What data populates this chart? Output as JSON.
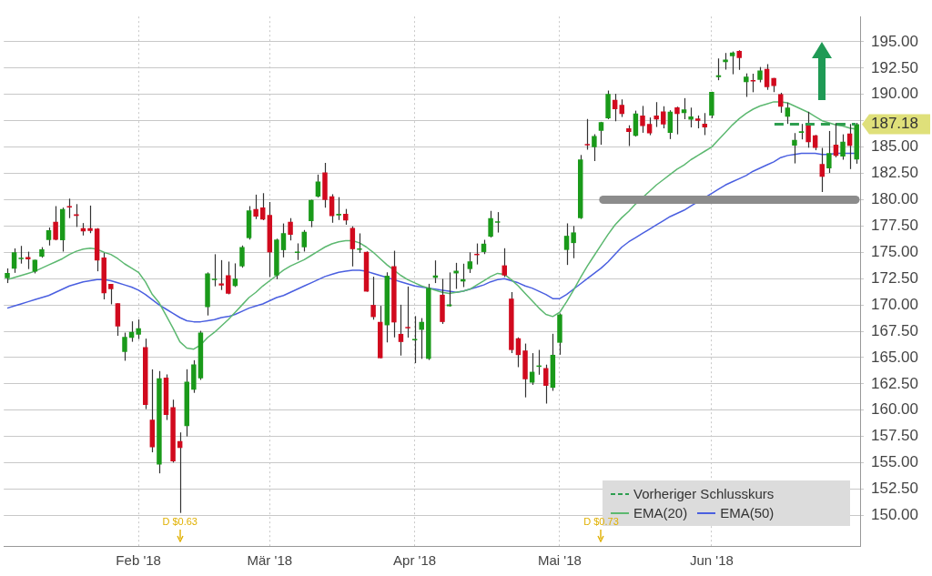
{
  "chart_data": {
    "type": "candlestick",
    "categories": [
      null,
      null,
      null,
      null,
      null,
      null,
      null,
      null,
      null,
      null,
      null,
      null,
      null,
      null,
      null,
      null,
      null,
      null,
      null,
      "Feb '18",
      null,
      null,
      null,
      null,
      null,
      null,
      null,
      null,
      null,
      null,
      null,
      null,
      null,
      null,
      null,
      null,
      null,
      null,
      "Mär '18",
      null,
      null,
      null,
      null,
      null,
      null,
      null,
      null,
      null,
      null,
      null,
      null,
      null,
      null,
      null,
      null,
      null,
      null,
      null,
      null,
      "Apr '18",
      null,
      null,
      null,
      null,
      null,
      null,
      null,
      null,
      null,
      null,
      null,
      null,
      null,
      null,
      null,
      null,
      null,
      null,
      null,
      null,
      "Mai '18",
      null,
      null,
      null,
      null,
      null,
      null,
      null,
      null,
      null,
      null,
      null,
      null,
      null,
      null,
      null,
      null,
      null,
      null,
      null,
      null,
      null,
      "Jun '18",
      null,
      null,
      null,
      null,
      null,
      null,
      null,
      null,
      null,
      null,
      null,
      null,
      null,
      null,
      null,
      null,
      null,
      null,
      null,
      null,
      null
    ],
    "ohlc": [
      [
        172.54,
        173.47,
        172.08,
        173.03
      ],
      [
        173.44,
        175.37,
        173.05,
        175.0
      ],
      [
        174.35,
        175.61,
        173.93,
        174.35
      ],
      [
        174.55,
        175.06,
        173.41,
        174.33
      ],
      [
        173.16,
        174.3,
        173.0,
        174.29
      ],
      [
        174.59,
        175.49,
        174.49,
        175.28
      ],
      [
        176.18,
        177.36,
        175.65,
        177.09
      ],
      [
        177.9,
        179.39,
        176.14,
        176.19
      ],
      [
        176.15,
        179.25,
        175.07,
        179.1
      ],
      [
        179.37,
        180.1,
        178.25,
        179.26
      ],
      [
        178.61,
        179.58,
        177.41,
        178.46
      ],
      [
        177.3,
        177.78,
        176.6,
        177.0
      ],
      [
        177.3,
        179.44,
        176.82,
        177.04
      ],
      [
        177.25,
        177.3,
        173.2,
        174.22
      ],
      [
        174.51,
        174.95,
        170.53,
        171.11
      ],
      [
        172.0,
        172.0,
        170.06,
        171.51
      ],
      [
        170.16,
        170.16,
        167.07,
        167.96
      ],
      [
        165.53,
        167.37,
        164.7,
        166.97
      ],
      [
        166.87,
        168.44,
        166.5,
        167.43
      ],
      [
        167.17,
        168.62,
        166.76,
        167.78
      ],
      [
        166.0,
        166.8,
        160.1,
        160.5
      ],
      [
        159.1,
        163.88,
        156.0,
        156.49
      ],
      [
        154.83,
        163.72,
        154.0,
        163.03
      ],
      [
        163.09,
        163.4,
        159.07,
        159.54
      ],
      [
        160.29,
        161.0,
        155.03,
        155.15
      ],
      [
        157.07,
        157.89,
        150.24,
        156.41
      ],
      [
        158.5,
        163.89,
        157.51,
        162.71
      ],
      [
        161.95,
        164.75,
        161.65,
        164.34
      ],
      [
        163.04,
        167.54,
        162.88,
        167.37
      ],
      [
        169.79,
        173.09,
        169.0,
        172.99
      ],
      [
        172.36,
        174.82,
        171.77,
        172.43
      ],
      [
        172.05,
        174.26,
        171.42,
        171.85
      ],
      [
        172.83,
        174.12,
        171.01,
        171.07
      ],
      [
        171.8,
        173.95,
        171.71,
        172.5
      ],
      [
        173.67,
        175.65,
        173.54,
        175.5
      ],
      [
        176.35,
        179.39,
        176.21,
        178.97
      ],
      [
        179.1,
        180.48,
        178.16,
        178.39
      ],
      [
        179.26,
        180.62,
        178.05,
        178.12
      ],
      [
        178.54,
        179.78,
        172.66,
        175.0
      ],
      [
        172.8,
        176.3,
        172.45,
        176.21
      ],
      [
        175.21,
        177.74,
        174.52,
        176.82
      ],
      [
        177.91,
        178.25,
        176.13,
        176.67
      ],
      [
        174.94,
        175.85,
        174.27,
        175.03
      ],
      [
        175.48,
        177.12,
        175.07,
        176.94
      ],
      [
        177.96,
        180.0,
        177.39,
        179.98
      ],
      [
        180.29,
        182.39,
        180.21,
        181.72
      ],
      [
        182.59,
        183.5,
        179.24,
        179.97
      ],
      [
        180.32,
        180.52,
        177.81,
        178.44
      ],
      [
        178.5,
        180.24,
        178.07,
        178.65
      ],
      [
        178.65,
        179.12,
        177.62,
        178.02
      ],
      [
        177.32,
        177.47,
        173.66,
        175.3
      ],
      [
        175.24,
        176.8,
        174.94,
        175.24
      ],
      [
        175.04,
        175.09,
        171.26,
        171.27
      ],
      [
        170.0,
        172.68,
        168.6,
        168.85
      ],
      [
        168.39,
        169.92,
        164.94,
        164.94
      ],
      [
        168.07,
        173.1,
        166.44,
        172.77
      ],
      [
        173.68,
        175.15,
        166.92,
        168.34
      ],
      [
        167.25,
        170.02,
        165.19,
        166.48
      ],
      [
        167.81,
        171.75,
        166.9,
        167.78
      ],
      [
        166.64,
        168.94,
        164.47,
        166.68
      ],
      [
        167.64,
        168.75,
        164.88,
        168.39
      ],
      [
        164.88,
        172.01,
        164.77,
        171.61
      ],
      [
        172.58,
        174.23,
        172.08,
        172.8
      ],
      [
        170.97,
        172.48,
        168.2,
        168.38
      ],
      [
        169.88,
        173.09,
        169.85,
        170.05
      ],
      [
        173.0,
        174.0,
        171.53,
        173.25
      ],
      [
        172.23,
        173.92,
        171.7,
        172.44
      ],
      [
        173.41,
        175.0,
        173.04,
        174.14
      ],
      [
        174.78,
        175.84,
        173.85,
        174.73
      ],
      [
        175.03,
        176.19,
        174.83,
        175.82
      ],
      [
        176.49,
        178.94,
        176.41,
        178.24
      ],
      [
        177.81,
        178.82,
        176.88,
        177.84
      ],
      [
        173.76,
        175.39,
        172.66,
        172.8
      ],
      [
        170.6,
        171.22,
        165.43,
        165.72
      ],
      [
        166.83,
        166.92,
        164.09,
        165.24
      ],
      [
        165.67,
        166.33,
        161.22,
        162.94
      ],
      [
        162.62,
        165.42,
        162.41,
        163.65
      ],
      [
        164.12,
        165.73,
        163.37,
        164.22
      ],
      [
        164.0,
        164.33,
        160.63,
        162.32
      ],
      [
        162.13,
        167.26,
        161.84,
        165.26
      ],
      [
        166.41,
        169.2,
        165.27,
        169.1
      ],
      [
        175.23,
        177.75,
        173.8,
        176.57
      ],
      [
        175.88,
        177.5,
        174.44,
        176.89
      ],
      [
        178.25,
        184.25,
        178.17,
        183.83
      ],
      [
        185.18,
        187.67,
        184.75,
        185.16
      ],
      [
        184.99,
        186.22,
        183.67,
        186.05
      ],
      [
        186.55,
        187.4,
        185.22,
        187.36
      ],
      [
        187.74,
        190.37,
        187.65,
        190.04
      ],
      [
        189.49,
        190.06,
        187.45,
        188.59
      ],
      [
        189.01,
        189.53,
        187.86,
        188.15
      ],
      [
        186.78,
        187.07,
        185.1,
        186.44
      ],
      [
        186.07,
        188.46,
        186.0,
        188.18
      ],
      [
        188.0,
        188.91,
        186.36,
        186.99
      ],
      [
        187.19,
        187.81,
        186.13,
        186.31
      ],
      [
        188.0,
        189.27,
        186.91,
        187.63
      ],
      [
        188.38,
        188.88,
        186.78,
        187.16
      ],
      [
        186.35,
        188.5,
        185.76,
        188.36
      ],
      [
        188.77,
        188.84,
        186.21,
        188.15
      ],
      [
        188.23,
        189.65,
        187.65,
        188.58
      ],
      [
        187.6,
        188.75,
        186.87,
        187.9
      ],
      [
        187.72,
        188.0,
        186.78,
        187.5
      ],
      [
        187.22,
        188.23,
        186.14,
        186.87
      ],
      [
        187.99,
        190.26,
        187.75,
        190.24
      ],
      [
        191.64,
        193.42,
        191.35,
        191.83
      ],
      [
        193.07,
        193.94,
        192.36,
        193.31
      ],
      [
        193.63,
        194.08,
        191.92,
        193.98
      ],
      [
        194.14,
        194.2,
        192.34,
        193.46
      ],
      [
        191.17,
        192.0,
        189.77,
        191.7
      ],
      [
        191.35,
        191.97,
        190.21,
        191.23
      ],
      [
        191.39,
        192.61,
        191.15,
        192.28
      ],
      [
        192.42,
        192.88,
        190.44,
        190.7
      ],
      [
        191.55,
        191.57,
        190.22,
        190.8
      ],
      [
        190.03,
        190.16,
        188.26,
        188.84
      ],
      [
        187.88,
        189.22,
        187.2,
        188.74
      ],
      [
        185.14,
        186.33,
        183.45,
        185.69
      ],
      [
        186.35,
        187.2,
        185.73,
        186.5
      ],
      [
        187.25,
        188.35,
        184.94,
        185.46
      ],
      [
        186.12,
        186.15,
        184.7,
        184.92
      ],
      [
        183.4,
        184.92,
        180.73,
        182.17
      ],
      [
        182.99,
        186.53,
        182.54,
        184.43
      ],
      [
        185.23,
        187.28,
        184.03,
        184.16
      ],
      [
        184.1,
        186.21,
        183.8,
        185.5
      ],
      [
        186.29,
        187.19,
        182.91,
        185.11
      ],
      [
        183.82,
        187.3,
        183.42,
        187.18
      ]
    ],
    "colors": [
      "#1a9a1a",
      "#1a9a1a",
      "#1a9a1a",
      "#d10a1e",
      "#1a9a1a",
      "#1a9a1a",
      "#1a9a1a",
      "#d10a1e",
      "#1a9a1a",
      "#d10a1e",
      "#d10a1e",
      "#d10a1e",
      "#d10a1e",
      "#d10a1e",
      "#d10a1e",
      "#d10a1e",
      "#d10a1e",
      "#1a9a1a",
      "#1a9a1a",
      "#1a9a1a",
      "#d10a1e",
      "#d10a1e",
      "#1a9a1a",
      "#d10a1e",
      "#d10a1e",
      "#d10a1e",
      "#1a9a1a",
      "#1a9a1a",
      "#1a9a1a",
      "#1a9a1a",
      "#1a9a1a",
      "#d10a1e",
      "#d10a1e",
      "#1a9a1a",
      "#1a9a1a",
      "#1a9a1a",
      "#d10a1e",
      "#d10a1e",
      "#d10a1e",
      "#1a9a1a",
      "#1a9a1a",
      "#d10a1e",
      "#1a9a1a",
      "#1a9a1a",
      "#1a9a1a",
      "#1a9a1a",
      "#d10a1e",
      "#d10a1e",
      "#1a9a1a",
      "#d10a1e",
      "#d10a1e",
      "#1a9a1a",
      "#d10a1e",
      "#d10a1e",
      "#d10a1e",
      "#1a9a1a",
      "#d10a1e",
      "#d10a1e",
      "#d10a1e",
      "#1a9a1a",
      "#1a9a1a",
      "#1a9a1a",
      "#1a9a1a",
      "#d10a1e",
      "#1a9a1a",
      "#1a9a1a",
      "#1a9a1a",
      "#1a9a1a",
      "#d10a1e",
      "#1a9a1a",
      "#1a9a1a",
      "#1a9a1a",
      "#d10a1e",
      "#d10a1e",
      "#d10a1e",
      "#d10a1e",
      "#1a9a1a",
      "#1a9a1a",
      "#d10a1e",
      "#1a9a1a",
      "#1a9a1a",
      "#1a9a1a",
      "#1a9a1a",
      "#1a9a1a",
      "#d10a1e",
      "#1a9a1a",
      "#1a9a1a",
      "#1a9a1a",
      "#d10a1e",
      "#d10a1e",
      "#d10a1e",
      "#1a9a1a",
      "#d10a1e",
      "#d10a1e",
      "#d10a1e",
      "#d10a1e",
      "#1a9a1a",
      "#d10a1e",
      "#1a9a1a",
      "#1a9a1a",
      "#d10a1e",
      "#d10a1e",
      "#1a9a1a",
      "#1a9a1a",
      "#1a9a1a",
      "#1a9a1a",
      "#d10a1e",
      "#1a9a1a",
      "#d10a1e",
      "#1a9a1a",
      "#d10a1e",
      "#d10a1e",
      "#d10a1e",
      "#1a9a1a",
      "#1a9a1a",
      "#1a9a1a",
      "#d10a1e",
      "#d10a1e",
      "#d10a1e",
      "#1a9a1a",
      "#d10a1e",
      "#1a9a1a",
      "#d10a1e",
      "#1a9a1a"
    ],
    "series": [
      {
        "name": "EMA(20)",
        "type": "line",
        "color": "#5cb870",
        "values": [
          172.4,
          172.6,
          172.8,
          173.0,
          173.2,
          173.5,
          173.8,
          174.1,
          174.4,
          174.8,
          175.1,
          175.3,
          175.4,
          175.3,
          175.0,
          174.8,
          174.4,
          173.9,
          173.5,
          173.1,
          172.2,
          171.0,
          170.2,
          169.0,
          167.8,
          166.5,
          165.9,
          165.8,
          166.2,
          166.9,
          167.4,
          168.0,
          168.6,
          169.3,
          170.0,
          170.7,
          171.2,
          171.8,
          172.3,
          172.8,
          173.3,
          173.7,
          174.0,
          174.3,
          174.7,
          175.1,
          175.5,
          175.8,
          176.0,
          176.1,
          176.1,
          175.9,
          175.5,
          175.0,
          174.4,
          173.8,
          173.3,
          172.8,
          172.4,
          172.1,
          171.8,
          171.6,
          171.4,
          171.2,
          171.1,
          171.2,
          171.3,
          171.5,
          171.9,
          172.3,
          172.7,
          173.0,
          172.9,
          172.4,
          171.8,
          171.1,
          170.4,
          169.7,
          169.1,
          168.9,
          169.3,
          170.3,
          171.4,
          172.6,
          173.7,
          174.7,
          175.7,
          176.7,
          177.6,
          178.3,
          178.9,
          179.6,
          180.2,
          180.8,
          181.4,
          181.9,
          182.4,
          182.9,
          183.3,
          183.8,
          184.2,
          184.6,
          185.0,
          185.7,
          186.4,
          187.1,
          187.7,
          188.2,
          188.6,
          188.9,
          189.1,
          189.3,
          189.3,
          189.2,
          188.9,
          188.6,
          188.3,
          187.9,
          187.5,
          187.3,
          187.1,
          187.0,
          186.8,
          186.7
        ]
      },
      {
        "name": "EMA(50)",
        "type": "line",
        "color": "#4a5fe0",
        "values": [
          169.7,
          169.9,
          170.1,
          170.3,
          170.5,
          170.7,
          170.9,
          171.2,
          171.5,
          171.8,
          172.0,
          172.2,
          172.3,
          172.4,
          172.4,
          172.3,
          172.1,
          171.9,
          171.7,
          171.4,
          171.0,
          170.5,
          170.0,
          169.6,
          169.2,
          168.8,
          168.5,
          168.4,
          168.4,
          168.5,
          168.6,
          168.8,
          168.9,
          169.1,
          169.4,
          169.7,
          169.9,
          170.1,
          170.4,
          170.7,
          170.9,
          171.2,
          171.5,
          171.8,
          172.1,
          172.4,
          172.7,
          172.9,
          173.1,
          173.2,
          173.3,
          173.3,
          173.2,
          173.0,
          172.8,
          172.6,
          172.4,
          172.2,
          172.0,
          171.8,
          171.7,
          171.6,
          171.5,
          171.4,
          171.3,
          171.2,
          171.3,
          171.5,
          171.7,
          171.9,
          172.2,
          172.4,
          172.5,
          172.3,
          172.1,
          171.8,
          171.6,
          171.3,
          171.0,
          170.6,
          170.6,
          171.0,
          171.5,
          172.0,
          172.5,
          173.0,
          173.5,
          174.1,
          174.8,
          175.5,
          176.0,
          176.4,
          176.8,
          177.2,
          177.6,
          178.0,
          178.4,
          178.7,
          179.0,
          179.4,
          179.8,
          180.2,
          180.6,
          181.0,
          181.4,
          181.7,
          182.0,
          182.3,
          182.7,
          183.0,
          183.3,
          183.6,
          184.0,
          184.2,
          184.3,
          184.4,
          184.4,
          184.4,
          184.3,
          184.3,
          184.4,
          184.4,
          184.4,
          184.4
        ]
      }
    ],
    "ylim": [
      147.1,
      197.4
    ],
    "yticks": [
      {
        "value": 150,
        "label": "150.00"
      },
      {
        "value": 152.5,
        "label": "152.50"
      },
      {
        "value": 155,
        "label": "155.00"
      },
      {
        "value": 157.5,
        "label": "157.50"
      },
      {
        "value": 160,
        "label": "160.00"
      },
      {
        "value": 162.5,
        "label": "162.50"
      },
      {
        "value": 165,
        "label": "165.00"
      },
      {
        "value": 167.5,
        "label": "167.50"
      },
      {
        "value": 170,
        "label": "170.00"
      },
      {
        "value": 172.5,
        "label": "172.50"
      },
      {
        "value": 175,
        "label": "175.00"
      },
      {
        "value": 177.5,
        "label": "177.50"
      },
      {
        "value": 180,
        "label": "180.00"
      },
      {
        "value": 182.5,
        "label": "182.50"
      },
      {
        "value": 185,
        "label": "185.00"
      },
      {
        "value": 187.5,
        "label": null
      },
      {
        "value": 190,
        "label": "190.00"
      },
      {
        "value": 192.5,
        "label": "192.50"
      },
      {
        "value": 195,
        "label": "195.00"
      }
    ],
    "ref_lines": [
      {
        "axis": "y",
        "value": 187.18,
        "label": "Vorheriger Schlusskurs",
        "color": "#2e9e4f",
        "line_style": "dashed"
      },
      {
        "axis": "y",
        "value": 180,
        "color": "#8c8c8c",
        "line_style": "solid"
      }
    ],
    "annotations": [
      "D $0.63",
      "D $0.73",
      "187.18"
    ],
    "grid": true,
    "legend": "bottom right"
  }
}
